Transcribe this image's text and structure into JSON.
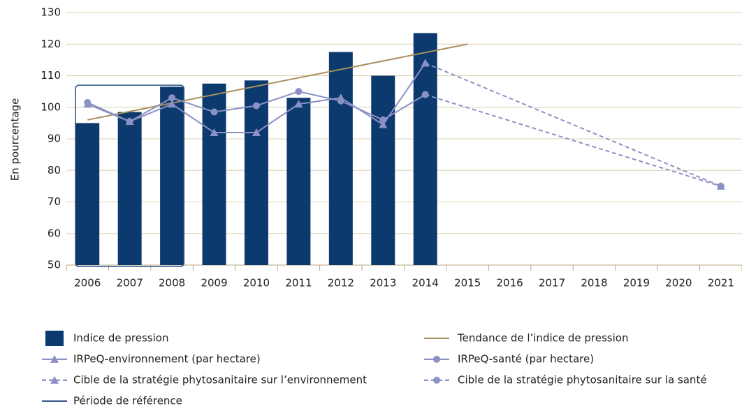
{
  "chart_data": {
    "type": "bar",
    "y_label": "En pourcentage",
    "categories": [
      "2006",
      "2007",
      "2008",
      "2009",
      "2010",
      "2011",
      "2012",
      "2013",
      "2014",
      "2015",
      "2016",
      "2017",
      "2018",
      "2019",
      "2020",
      "2021"
    ],
    "ylim": [
      50,
      130
    ],
    "yticks": [
      50,
      60,
      70,
      80,
      90,
      100,
      110,
      120,
      130
    ],
    "grid": true,
    "bars": {
      "name": "Indice de pression",
      "color": "#0d3a6e",
      "values": [
        95,
        98.5,
        106.5,
        107.5,
        108.5,
        103,
        117.5,
        110,
        123.5,
        null,
        null,
        null,
        null,
        null,
        null,
        null
      ]
    },
    "series": [
      {
        "name": "Tendance de l’indice de pression",
        "color": "#a8905e",
        "dash": false,
        "marker": "none",
        "x": [
          2006,
          2015
        ],
        "values": [
          96,
          120
        ]
      },
      {
        "name": "IRPeQ-environnement (par hectare)",
        "color": "#8b91c4",
        "dash": false,
        "marker": "triangle",
        "x": [
          2006,
          2007,
          2008,
          2009,
          2010,
          2011,
          2012,
          2013,
          2014
        ],
        "values": [
          101,
          95.5,
          101,
          92,
          92,
          101,
          103,
          94.5,
          114
        ]
      },
      {
        "name": "IRPeQ-santé (par hectare)",
        "color": "#8b91c4",
        "dash": false,
        "marker": "circle",
        "x": [
          2006,
          2007,
          2008,
          2009,
          2010,
          2011,
          2012,
          2013,
          2014
        ],
        "values": [
          101.5,
          95.5,
          103,
          98.5,
          100.5,
          105,
          102,
          96,
          104
        ]
      },
      {
        "name": "Cible de la stratégie phytosanitaire sur l’environnement",
        "color": "#8b91c4",
        "dash": true,
        "marker": "triangle",
        "x": [
          2014,
          2021
        ],
        "values": [
          114,
          75
        ]
      },
      {
        "name": "Cible de la stratégie phytosanitaire sur la santé",
        "color": "#8b91c4",
        "dash": true,
        "marker": "circle",
        "x": [
          2014,
          2021
        ],
        "values": [
          104,
          75
        ]
      }
    ],
    "reference_period": {
      "name": "Période de référence",
      "color": "#2f5486",
      "from": "2006",
      "to": "2008",
      "top": 107
    }
  }
}
